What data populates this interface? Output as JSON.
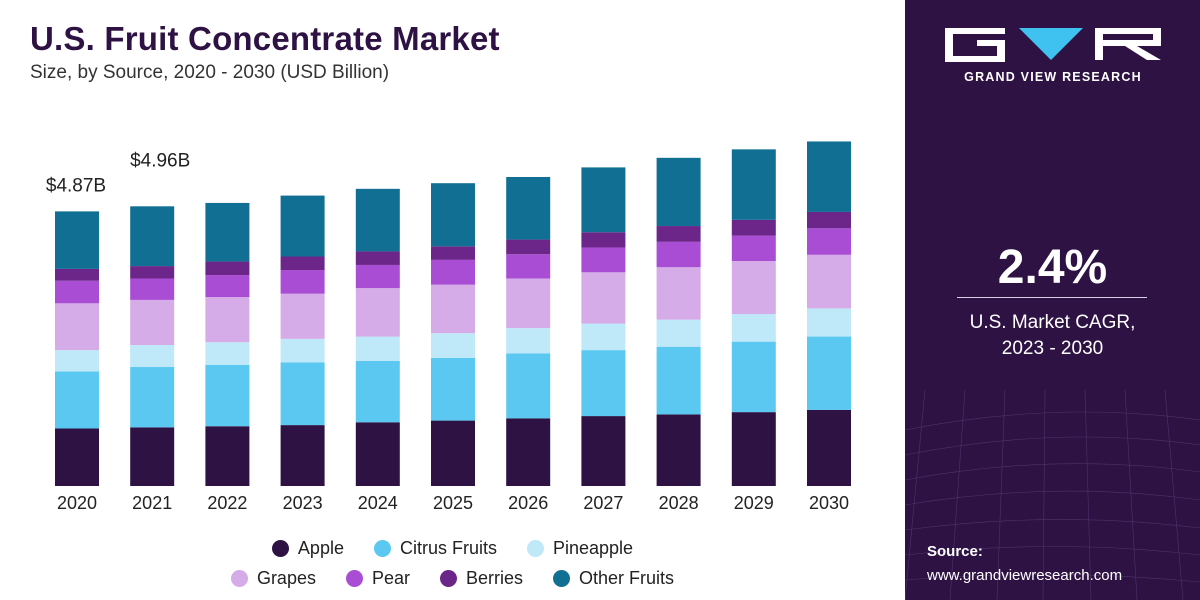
{
  "header": {
    "title": "U.S. Fruit Concentrate Market",
    "subtitle": "Size, by Source, 2020 - 2030 (USD Billion)"
  },
  "sidebar": {
    "brand": "GRAND VIEW RESEARCH",
    "cagr_value": "2.4%",
    "cagr_label_line1": "U.S. Market CAGR,",
    "cagr_label_line2": "2023 - 2030",
    "source_title": "Source:",
    "source_url": "www.grandviewresearch.com"
  },
  "colors": {
    "Apple": "#2e1244",
    "Citrus Fruits": "#5bc8f2",
    "Pineapple": "#bfe8f8",
    "Grapes": "#d5abe8",
    "Pear": "#a94dd4",
    "Berries": "#6c2589",
    "Other Fruits": "#116f93",
    "panel": "#2e1244"
  },
  "chart_data": {
    "type": "bar",
    "stacked": true,
    "categories": [
      "2020",
      "2021",
      "2022",
      "2023",
      "2024",
      "2025",
      "2026",
      "2027",
      "2028",
      "2029",
      "2030"
    ],
    "series": [
      {
        "name": "Apple",
        "values": [
          1.02,
          1.04,
          1.06,
          1.08,
          1.13,
          1.16,
          1.2,
          1.24,
          1.27,
          1.31,
          1.35
        ]
      },
      {
        "name": "Citrus Fruits",
        "values": [
          1.01,
          1.07,
          1.09,
          1.11,
          1.09,
          1.11,
          1.15,
          1.17,
          1.2,
          1.25,
          1.3
        ]
      },
      {
        "name": "Pineapple",
        "values": [
          0.38,
          0.39,
          0.4,
          0.42,
          0.43,
          0.44,
          0.45,
          0.47,
          0.48,
          0.49,
          0.5
        ]
      },
      {
        "name": "Grapes",
        "values": [
          0.83,
          0.8,
          0.8,
          0.8,
          0.86,
          0.86,
          0.88,
          0.91,
          0.93,
          0.94,
          0.95
        ]
      },
      {
        "name": "Pear",
        "values": [
          0.4,
          0.38,
          0.39,
          0.42,
          0.41,
          0.44,
          0.43,
          0.44,
          0.45,
          0.45,
          0.47
        ]
      },
      {
        "name": "Berries",
        "values": [
          0.21,
          0.22,
          0.24,
          0.24,
          0.24,
          0.24,
          0.26,
          0.27,
          0.28,
          0.28,
          0.29
        ]
      },
      {
        "name": "Other Fruits",
        "values": [
          1.02,
          1.06,
          1.04,
          1.08,
          1.11,
          1.12,
          1.11,
          1.15,
          1.21,
          1.25,
          1.25
        ]
      }
    ],
    "data_labels": [
      {
        "category": "2020",
        "text": "$4.87B"
      },
      {
        "category": "2021",
        "text": "$4.96B"
      }
    ],
    "ylim": [
      0,
      7.2
    ],
    "grid": false,
    "legend_position": "bottom"
  }
}
